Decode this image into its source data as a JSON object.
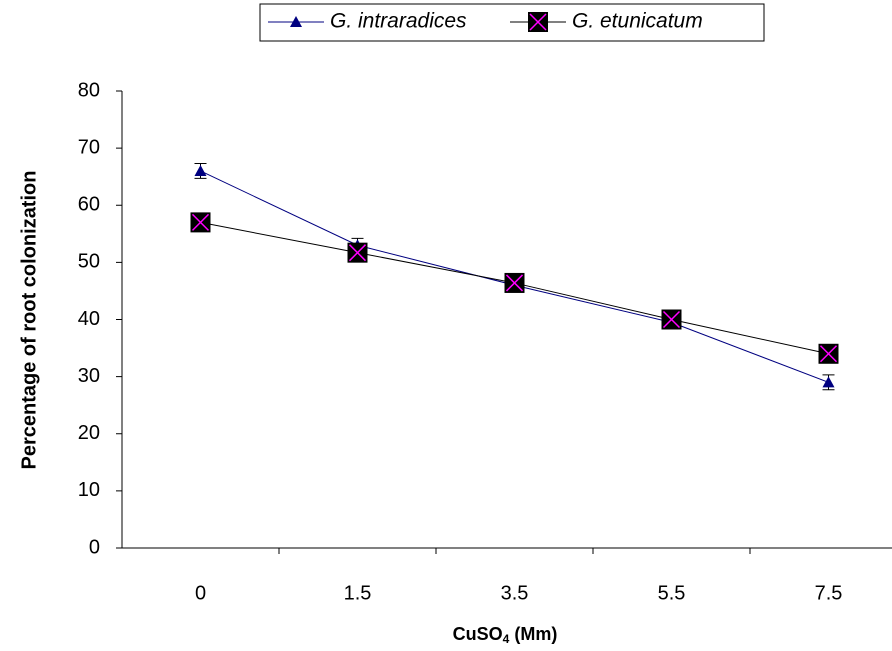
{
  "chart_data": {
    "type": "line",
    "x_label": [
      "CuSO",
      "4",
      " (Mm)"
    ],
    "y_label": "Percentage of root colonization",
    "categories": [
      "0",
      "1.5",
      "3.5",
      "5.5",
      "7.5"
    ],
    "series": [
      {
        "name": "G. intraradices",
        "color": "#000080",
        "marker": "triangle",
        "values": [
          66,
          53,
          46,
          39.5,
          29
        ],
        "errors": [
          1.3,
          1.2,
          0.5,
          0.5,
          1.3
        ]
      },
      {
        "name": "G. etunicatum",
        "color": "#000000",
        "marker": "square-x",
        "values": [
          57,
          51.7,
          46.4,
          40,
          34
        ]
      }
    ],
    "ylim": [
      0,
      80
    ],
    "yticks": [
      0,
      10,
      20,
      30,
      40,
      50,
      60,
      70,
      80
    ]
  }
}
